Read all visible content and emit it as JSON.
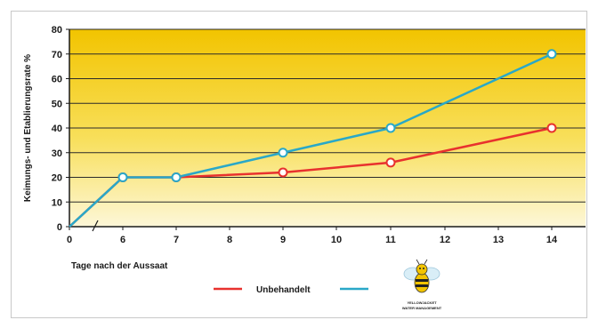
{
  "chart_data": {
    "type": "line",
    "title": "",
    "xlabel": "Tage nach der Aussaat",
    "ylabel": "Keimungs- und Etablierungsrate %",
    "x_ticks": [
      0,
      6,
      7,
      8,
      9,
      10,
      11,
      12,
      13,
      14
    ],
    "y_ticks": [
      0,
      10,
      20,
      30,
      40,
      50,
      60,
      70,
      80
    ],
    "ylim": [
      0,
      80
    ],
    "grid": true,
    "legend_position": "bottom",
    "series": [
      {
        "name": "Unbehandelt",
        "color": "#e8312e",
        "points": [
          {
            "x": 0,
            "y": 0
          },
          {
            "x": 6,
            "y": 20
          },
          {
            "x": 7,
            "y": 20
          },
          {
            "x": 9,
            "y": 22
          },
          {
            "x": 11,
            "y": 26
          },
          {
            "x": 14,
            "y": 40
          }
        ]
      },
      {
        "name": "",
        "color": "#29a8c8",
        "points": [
          {
            "x": 0,
            "y": 0
          },
          {
            "x": 6,
            "y": 20
          },
          {
            "x": 7,
            "y": 20
          },
          {
            "x": 9,
            "y": 30
          },
          {
            "x": 11,
            "y": 40
          },
          {
            "x": 14,
            "y": 70
          }
        ]
      }
    ],
    "legend_logo": {
      "icon": "bee-mascot-icon",
      "line1": "YELLOWJACKET",
      "line2": "WATER MANAGEMENT"
    }
  }
}
